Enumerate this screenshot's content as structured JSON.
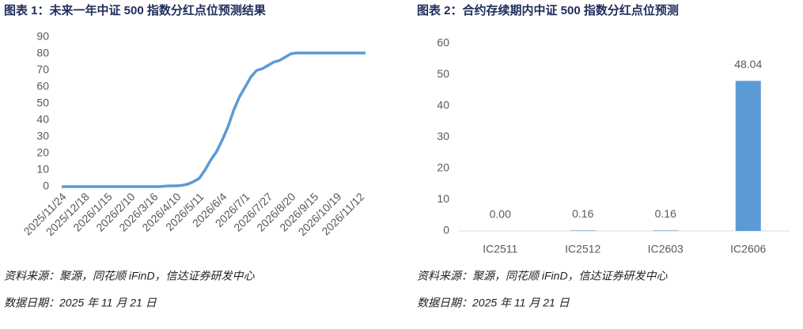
{
  "chart_data": [
    {
      "type": "line",
      "title": "图表 1：未来一年中证 500 指数分红点位预测结果",
      "categories": [
        "2025/11/24",
        null,
        null,
        null,
        "2025/12/18",
        null,
        null,
        null,
        "2026/1/15",
        null,
        null,
        null,
        "2026/2/10",
        null,
        null,
        null,
        "2026/3/16",
        null,
        null,
        null,
        "2026/4/10",
        null,
        null,
        null,
        "2026/5/11",
        null,
        null,
        null,
        "2026/6/4",
        null,
        null,
        null,
        "2026/7/1",
        null,
        null,
        null,
        "2026/7/27",
        null,
        null,
        null,
        "2026/8/20",
        null,
        null,
        null,
        "2026/9/15",
        null,
        null,
        null,
        "2026/10/19",
        null,
        null,
        null,
        "2026/11/12",
        null
      ],
      "values": [
        0,
        0,
        0,
        0,
        0,
        0,
        0,
        0,
        0,
        0,
        0,
        0,
        0,
        0,
        0,
        0,
        0,
        0,
        0.3,
        0.5,
        0.5,
        0.8,
        1.5,
        3,
        5,
        10,
        16,
        21,
        28,
        36,
        46,
        54,
        60,
        66,
        70,
        71,
        73,
        75,
        76,
        78,
        80,
        80.5,
        80.5,
        80.5,
        80.5,
        80.5,
        80.5,
        80.5,
        80.5,
        80.5,
        80.5,
        80.5,
        80.5,
        80.5
      ],
      "color": "#5b9bd5",
      "ylim": [
        0,
        90
      ],
      "yticks": [
        0,
        10,
        20,
        30,
        40,
        50,
        60,
        70,
        80,
        90
      ],
      "notes": [
        "资料来源：聚源，同花顺 iFinD，信达证券研发中心",
        "数据日期：2025 年 11 月 21 日"
      ]
    },
    {
      "type": "bar",
      "title": "图表 2：合约存续期内中证 500 指数分红点位预测",
      "categories": [
        "IC2511",
        "IC2512",
        "IC2603",
        "IC2606"
      ],
      "values": [
        0,
        0.16,
        0.16,
        48.04
      ],
      "value_labels": [
        "0.00",
        "0.16",
        "0.16",
        "48.04"
      ],
      "color": "#5b9bd5",
      "ylim": [
        0,
        60
      ],
      "yticks": [
        0,
        10,
        20,
        30,
        40,
        50,
        60
      ],
      "notes": [
        "资料来源：聚源，同花顺 iFinD，信达证券研发中心",
        "数据日期：2025 年 11 月 21 日"
      ]
    }
  ]
}
